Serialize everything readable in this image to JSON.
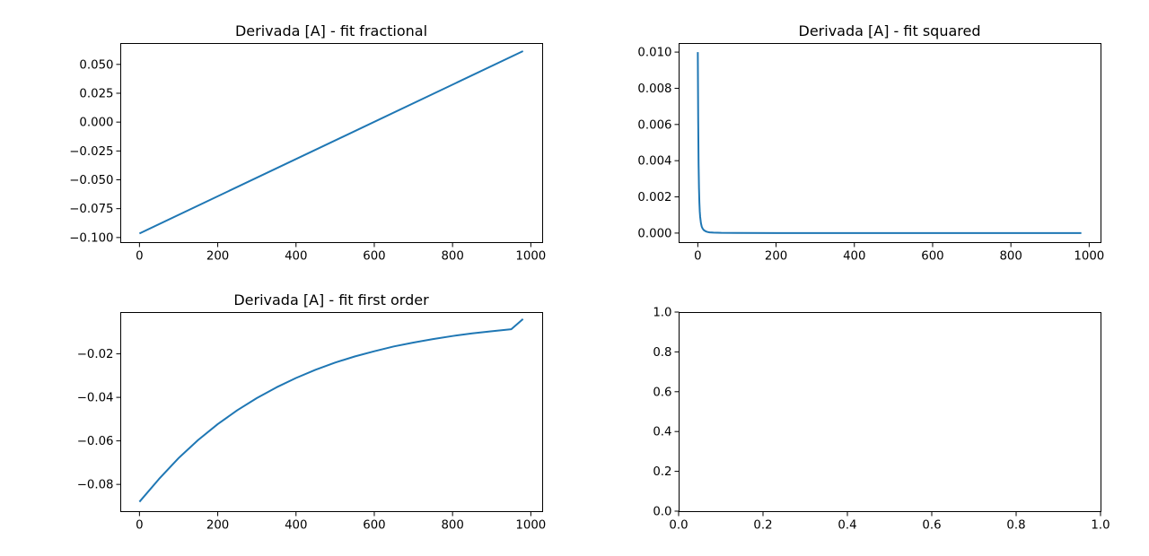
{
  "figure": {
    "background": "#ffffff",
    "series_color": "#1f77b4"
  },
  "chart_data": [
    {
      "id": "fractional",
      "type": "line",
      "title": "Derivada [A] - fit fractional",
      "xlabel": "",
      "ylabel": "",
      "xlim": [
        -49,
        1029
      ],
      "ylim": [
        -0.104,
        0.0685
      ],
      "xticks": [
        0,
        200,
        400,
        600,
        800,
        1000
      ],
      "xtick_labels": [
        "0",
        "200",
        "400",
        "600",
        "800",
        "1000"
      ],
      "yticks": [
        -0.1,
        -0.075,
        -0.05,
        -0.025,
        0.0,
        0.025,
        0.05
      ],
      "ytick_labels": [
        "−0.100",
        "−0.075",
        "−0.050",
        "−0.025",
        "0.000",
        "0.025",
        "0.050"
      ],
      "grid": false,
      "series": [
        {
          "x": [
            0,
            980
          ],
          "y": [
            -0.0965,
            0.0615
          ]
        }
      ]
    },
    {
      "id": "squared",
      "type": "line",
      "title": "Derivada [A] - fit squared",
      "xlabel": "",
      "ylabel": "",
      "xlim": [
        -49,
        1029
      ],
      "ylim": [
        -0.0005,
        0.0105
      ],
      "xticks": [
        0,
        200,
        400,
        600,
        800,
        1000
      ],
      "xtick_labels": [
        "0",
        "200",
        "400",
        "600",
        "800",
        "1000"
      ],
      "yticks": [
        0.0,
        0.002,
        0.004,
        0.006,
        0.008,
        0.01
      ],
      "ytick_labels": [
        "0.000",
        "0.002",
        "0.004",
        "0.006",
        "0.008",
        "0.010"
      ],
      "grid": false,
      "series": [
        {
          "x": [
            0,
            1,
            2,
            3,
            4,
            5,
            6,
            8,
            10,
            12,
            15,
            20,
            25,
            30,
            40,
            60,
            100,
            200,
            400,
            600,
            800,
            980
          ],
          "y": [
            0.01,
            0.0062,
            0.0038,
            0.0025,
            0.0017,
            0.0012,
            0.0009,
            0.00055,
            0.00036,
            0.00026,
            0.00017,
            0.0001,
            6e-05,
            4e-05,
            2.5e-05,
            1.2e-05,
            5e-06,
            1.5e-06,
            4e-07,
            2e-07,
            1e-07,
            1e-07
          ]
        }
      ]
    },
    {
      "id": "first-order",
      "type": "line",
      "title": "Derivada [A] - fit first order",
      "xlabel": "",
      "ylabel": "",
      "xlim": [
        -49,
        1029
      ],
      "ylim": [
        -0.0923,
        -0.0008
      ],
      "xticks": [
        0,
        200,
        400,
        600,
        800,
        1000
      ],
      "xtick_labels": [
        "0",
        "200",
        "400",
        "600",
        "800",
        "1000"
      ],
      "yticks": [
        -0.08,
        -0.06,
        -0.04,
        -0.02
      ],
      "ytick_labels": [
        "−0.08",
        "−0.06",
        "−0.04",
        "−0.02"
      ],
      "grid": false,
      "series": [
        {
          "x": [
            0,
            50,
            100,
            150,
            200,
            250,
            300,
            350,
            400,
            450,
            500,
            550,
            600,
            650,
            700,
            750,
            800,
            850,
            900,
            950,
            980
          ],
          "y": [
            -0.088,
            -0.0775,
            -0.0679,
            -0.0596,
            -0.0523,
            -0.0459,
            -0.0403,
            -0.0354,
            -0.0311,
            -0.0273,
            -0.024,
            -0.0212,
            -0.0188,
            -0.0166,
            -0.0148,
            -0.0132,
            -0.0118,
            -0.0106,
            -0.0096,
            -0.0087,
            -0.004
          ]
        }
      ]
    },
    {
      "id": "empty",
      "type": "line",
      "title": "",
      "xlabel": "",
      "ylabel": "",
      "xlim": [
        0,
        1
      ],
      "ylim": [
        0,
        1
      ],
      "xticks": [
        0,
        0.2,
        0.4,
        0.6,
        0.8,
        1.0
      ],
      "xtick_labels": [
        "0.0",
        "0.2",
        "0.4",
        "0.6",
        "0.8",
        "1.0"
      ],
      "yticks": [
        0,
        0.2,
        0.4,
        0.6,
        0.8,
        1.0
      ],
      "ytick_labels": [
        "0.0",
        "0.2",
        "0.4",
        "0.6",
        "0.8",
        "1.0"
      ],
      "grid": false,
      "series": []
    }
  ]
}
